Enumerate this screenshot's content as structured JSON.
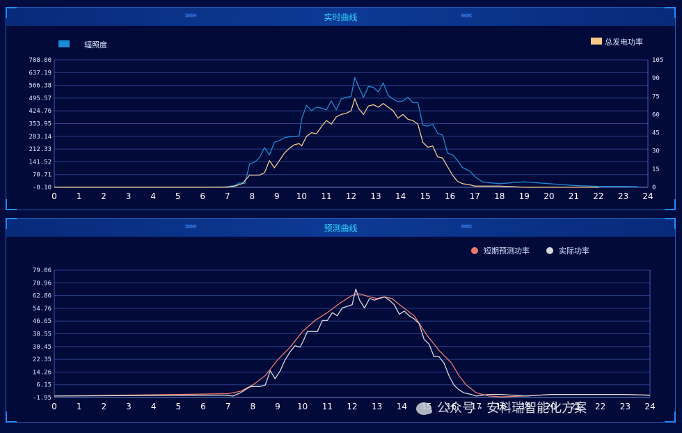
{
  "panels": [
    {
      "title": "实时曲线",
      "legend": [
        {
          "label": "辐照度",
          "color": "#1a8ad4",
          "shape": "rect"
        },
        {
          "label": "总发电功率",
          "color": "#f5c98a",
          "shape": "rect"
        }
      ]
    },
    {
      "title": "预测曲线",
      "legend": [
        {
          "label": "短期预测功率",
          "color": "#f07a6a",
          "shape": "circle"
        },
        {
          "label": "实际功率",
          "color": "#d9d9d9",
          "shape": "circle"
        }
      ]
    }
  ],
  "watermark": "公众号 · 安科瑞智能化方案",
  "chart_data": [
    {
      "type": "line",
      "title": "实时曲线",
      "xlim": [
        0,
        24
      ],
      "x_ticks": [
        "0",
        "1",
        "2",
        "3",
        "4",
        "5",
        "6",
        "7",
        "8",
        "9",
        "10",
        "11",
        "12",
        "13",
        "14",
        "15",
        "16",
        "17",
        "18",
        "19",
        "20",
        "21",
        "22",
        "23",
        "24"
      ],
      "ylim_left": [
        -0.1,
        708.0
      ],
      "y_ticks_left": [
        "708.00",
        "637.19",
        "566.38",
        "495.57",
        "424.76",
        "353.95",
        "283.14",
        "212.33",
        "141.52",
        "70.71",
        "-0.10"
      ],
      "ylim_right": [
        0,
        105
      ],
      "y_ticks_right": [
        "105",
        "90",
        "75",
        "60",
        "45",
        "30",
        "15",
        "0"
      ],
      "grid": true,
      "series": [
        {
          "name": "辐照度",
          "axis": "left",
          "color": "#1a8ad4",
          "points": [
            [
              0,
              0
            ],
            [
              6,
              0
            ],
            [
              6.9,
              2
            ],
            [
              7.3,
              10
            ],
            [
              7.5,
              25
            ],
            [
              7.7,
              20
            ],
            [
              7.9,
              130
            ],
            [
              8.1,
              140
            ],
            [
              8.3,
              165
            ],
            [
              8.5,
              220
            ],
            [
              8.7,
              180
            ],
            [
              8.9,
              250
            ],
            [
              9.1,
              260
            ],
            [
              9.3,
              275
            ],
            [
              9.5,
              280
            ],
            [
              9.7,
              282
            ],
            [
              9.9,
              285
            ],
            [
              10,
              380
            ],
            [
              10.2,
              455
            ],
            [
              10.4,
              425
            ],
            [
              10.6,
              445
            ],
            [
              10.8,
              440
            ],
            [
              11,
              430
            ],
            [
              11.2,
              480
            ],
            [
              11.4,
              430
            ],
            [
              11.6,
              490
            ],
            [
              11.8,
              500
            ],
            [
              12,
              505
            ],
            [
              12.15,
              610
            ],
            [
              12.3,
              560
            ],
            [
              12.5,
              500
            ],
            [
              12.7,
              560
            ],
            [
              12.9,
              555
            ],
            [
              13.1,
              530
            ],
            [
              13.3,
              580
            ],
            [
              13.5,
              510
            ],
            [
              13.7,
              490
            ],
            [
              13.9,
              475
            ],
            [
              14.1,
              480
            ],
            [
              14.3,
              500
            ],
            [
              14.5,
              470
            ],
            [
              14.7,
              470
            ],
            [
              14.9,
              345
            ],
            [
              15.1,
              340
            ],
            [
              15.3,
              350
            ],
            [
              15.5,
              300
            ],
            [
              15.7,
              290
            ],
            [
              15.9,
              190
            ],
            [
              16.1,
              180
            ],
            [
              16.3,
              150
            ],
            [
              16.5,
              110
            ],
            [
              16.8,
              90
            ],
            [
              17,
              60
            ],
            [
              17.3,
              30
            ],
            [
              17.6,
              25
            ],
            [
              18,
              20
            ],
            [
              18.5,
              25
            ],
            [
              19,
              30
            ],
            [
              20,
              20
            ],
            [
              21,
              10
            ],
            [
              22,
              5
            ],
            [
              23,
              5
            ],
            [
              23.6,
              3
            ]
          ]
        },
        {
          "name": "总发电功率",
          "axis": "right",
          "color": "#f5c98a",
          "points": [
            [
              0,
              0
            ],
            [
              7,
              0
            ],
            [
              7.3,
              1
            ],
            [
              7.6,
              3
            ],
            [
              7.9,
              10
            ],
            [
              8.1,
              10
            ],
            [
              8.3,
              10
            ],
            [
              8.5,
              12
            ],
            [
              8.7,
              22
            ],
            [
              8.9,
              16
            ],
            [
              9.1,
              22
            ],
            [
              9.3,
              28
            ],
            [
              9.5,
              32
            ],
            [
              9.7,
              35
            ],
            [
              9.9,
              36
            ],
            [
              10,
              34
            ],
            [
              10.2,
              42
            ],
            [
              10.4,
              45
            ],
            [
              10.6,
              44
            ],
            [
              10.8,
              50
            ],
            [
              11,
              55
            ],
            [
              11.2,
              52
            ],
            [
              11.4,
              58
            ],
            [
              11.6,
              60
            ],
            [
              11.8,
              61
            ],
            [
              12,
              63
            ],
            [
              12.15,
              73
            ],
            [
              12.3,
              65
            ],
            [
              12.5,
              60
            ],
            [
              12.7,
              67
            ],
            [
              12.9,
              68
            ],
            [
              13.1,
              66
            ],
            [
              13.3,
              69
            ],
            [
              13.5,
              66
            ],
            [
              13.7,
              63
            ],
            [
              13.9,
              57
            ],
            [
              14.1,
              60
            ],
            [
              14.3,
              56
            ],
            [
              14.5,
              55
            ],
            [
              14.7,
              52
            ],
            [
              14.9,
              37
            ],
            [
              15.1,
              33
            ],
            [
              15.3,
              34
            ],
            [
              15.5,
              25
            ],
            [
              15.7,
              24
            ],
            [
              15.9,
              17
            ],
            [
              16.1,
              10
            ],
            [
              16.3,
              5
            ],
            [
              16.5,
              3
            ],
            [
              16.8,
              2
            ],
            [
              17,
              1
            ],
            [
              17.5,
              1
            ],
            [
              18,
              1
            ],
            [
              19,
              0
            ],
            [
              22,
              0
            ]
          ]
        }
      ]
    },
    {
      "type": "line",
      "title": "预测曲线",
      "xlim": [
        0,
        24
      ],
      "x_ticks": [
        "0",
        "1",
        "2",
        "3",
        "4",
        "5",
        "6",
        "7",
        "8",
        "9",
        "10",
        "11",
        "12",
        "13",
        "14",
        "15",
        "16",
        "17",
        "18",
        "19",
        "20",
        "21",
        "22",
        "23",
        "24"
      ],
      "ylim": [
        -1.95,
        79.06
      ],
      "y_ticks": [
        "79.06",
        "70.96",
        "62.86",
        "54.76",
        "46.65",
        "38.55",
        "30.45",
        "22.35",
        "14.26",
        "6.15",
        "-1.95"
      ],
      "grid": true,
      "series": [
        {
          "name": "短期预测功率",
          "color": "#f07a6a",
          "points": [
            [
              0,
              -1
            ],
            [
              5,
              0
            ],
            [
              7,
              0.5
            ],
            [
              7.5,
              2
            ],
            [
              8,
              6
            ],
            [
              8.5,
              12
            ],
            [
              9,
              22
            ],
            [
              9.5,
              30
            ],
            [
              10,
              40
            ],
            [
              10.5,
              47
            ],
            [
              11,
              52
            ],
            [
              11.5,
              58
            ],
            [
              12,
              63
            ],
            [
              12.3,
              64
            ],
            [
              12.7,
              62
            ],
            [
              13,
              61
            ],
            [
              13.3,
              62
            ],
            [
              13.6,
              61
            ],
            [
              14,
              56
            ],
            [
              14.5,
              50
            ],
            [
              15,
              38
            ],
            [
              15.5,
              28
            ],
            [
              16,
              20
            ],
            [
              16.3,
              12
            ],
            [
              16.6,
              6
            ],
            [
              17,
              1
            ],
            [
              17.5,
              -1
            ],
            [
              18,
              -1.5
            ],
            [
              19,
              -1
            ],
            [
              20,
              0
            ],
            [
              21,
              0
            ],
            [
              22,
              0
            ],
            [
              23,
              0
            ],
            [
              24,
              -0.5
            ]
          ]
        },
        {
          "name": "实际功率",
          "color": "#d9d9d9",
          "points": [
            [
              0,
              -1
            ],
            [
              6,
              -0.5
            ],
            [
              6.9,
              -0.5
            ],
            [
              7.2,
              -1
            ],
            [
              7.5,
              1
            ],
            [
              7.7,
              3
            ],
            [
              7.9,
              5
            ],
            [
              8.1,
              5
            ],
            [
              8.3,
              5
            ],
            [
              8.5,
              6
            ],
            [
              8.7,
              15
            ],
            [
              8.9,
              10
            ],
            [
              9.1,
              15
            ],
            [
              9.3,
              22
            ],
            [
              9.5,
              27
            ],
            [
              9.7,
              31
            ],
            [
              9.9,
              30
            ],
            [
              10,
              33
            ],
            [
              10.2,
              40
            ],
            [
              10.4,
              40
            ],
            [
              10.6,
              40
            ],
            [
              10.8,
              47
            ],
            [
              11,
              47
            ],
            [
              11.2,
              52
            ],
            [
              11.4,
              50
            ],
            [
              11.6,
              55
            ],
            [
              11.8,
              56
            ],
            [
              12,
              57
            ],
            [
              12.15,
              67
            ],
            [
              12.3,
              60
            ],
            [
              12.5,
              55
            ],
            [
              12.7,
              61
            ],
            [
              12.9,
              60
            ],
            [
              13.1,
              61
            ],
            [
              13.3,
              62
            ],
            [
              13.5,
              60
            ],
            [
              13.7,
              57
            ],
            [
              13.9,
              51
            ],
            [
              14.1,
              53
            ],
            [
              14.3,
              50
            ],
            [
              14.5,
              48
            ],
            [
              14.7,
              45
            ],
            [
              14.9,
              35
            ],
            [
              15.1,
              32
            ],
            [
              15.3,
              24
            ],
            [
              15.5,
              24
            ],
            [
              15.7,
              20
            ],
            [
              15.9,
              12
            ],
            [
              16.1,
              6
            ],
            [
              16.3,
              3
            ],
            [
              16.5,
              1
            ],
            [
              16.8,
              0
            ],
            [
              17,
              -1
            ],
            [
              17.5,
              0
            ],
            [
              18,
              0
            ],
            [
              19,
              -1
            ],
            [
              20,
              0
            ],
            [
              21,
              0
            ],
            [
              22,
              0
            ],
            [
              23,
              0
            ],
            [
              24,
              -0.5
            ]
          ]
        }
      ]
    }
  ]
}
